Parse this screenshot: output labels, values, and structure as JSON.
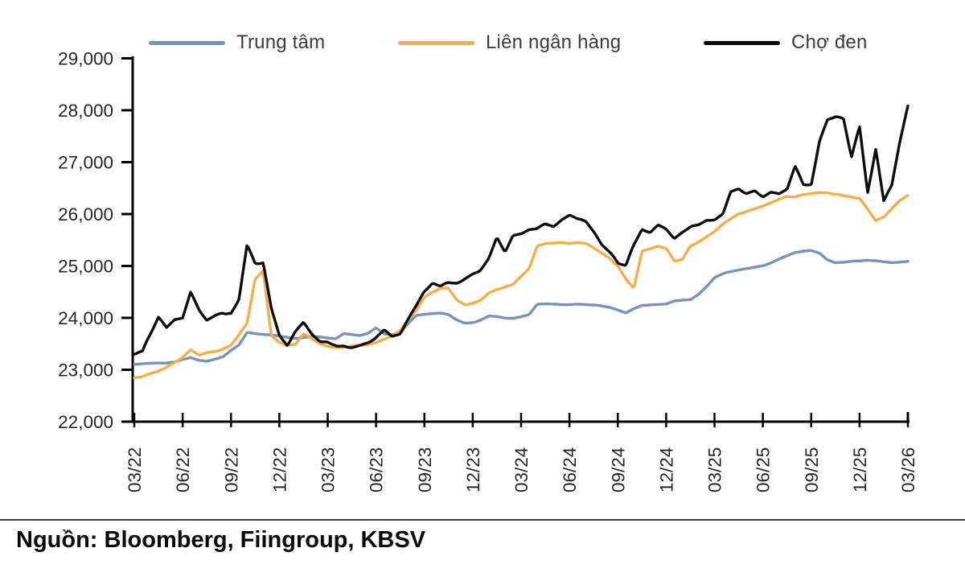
{
  "legend": {
    "items": [
      {
        "label": "Trung tâm",
        "color": "#7b93b6"
      },
      {
        "label": "Liên ngân hàng",
        "color": "#f3af4b"
      },
      {
        "label": "Chợ đen",
        "color": "#0d0d0d"
      }
    ]
  },
  "footer": {
    "source_label": "Nguồn: Bloomberg, Fiingroup, KBSV"
  },
  "chart_data": {
    "type": "line",
    "title": "",
    "xlabel": "",
    "ylabel": "",
    "grid": false,
    "legend_position": "top",
    "ylim": [
      22000,
      29000
    ],
    "y_tick_labels": [
      "22,000",
      "23,000",
      "24,000",
      "25,000",
      "26,000",
      "27,000",
      "28,000",
      "29,000"
    ],
    "x_tick_labels": [
      "03/22",
      "06/22",
      "09/22",
      "12/22",
      "03/23",
      "06/23",
      "09/23",
      "12/23",
      "03/24",
      "06/24",
      "09/24",
      "12/24",
      "03/25",
      "06/25",
      "09/25",
      "12/25",
      "03/26"
    ],
    "x_resolution": "semi-monthly values (2 per month) from 03/2022 to 03/2026, 97 points per series, USD/VND",
    "series": [
      {
        "name": "Trung tâm",
        "color": "#7b93b6",
        "volatility": "low",
        "values": [
          23100,
          23110,
          23120,
          23130,
          23130,
          23150,
          23200,
          23230,
          23180,
          23160,
          23200,
          23250,
          23370,
          23480,
          23720,
          23700,
          23680,
          23670,
          23650,
          23630,
          23610,
          23620,
          23640,
          23630,
          23610,
          23600,
          23700,
          23680,
          23660,
          23700,
          23810,
          23690,
          23680,
          23720,
          23900,
          24050,
          24070,
          24080,
          24090,
          24060,
          23960,
          23900,
          23910,
          23960,
          24040,
          24030,
          24000,
          23990,
          24020,
          24060,
          24260,
          24270,
          24270,
          24260,
          24260,
          24270,
          24260,
          24250,
          24230,
          24200,
          24150,
          24100,
          24180,
          24240,
          24250,
          24260,
          24270,
          24330,
          24340,
          24350,
          24450,
          24600,
          24780,
          24850,
          24890,
          24920,
          24950,
          24980,
          25000,
          25060,
          25130,
          25200,
          25260,
          25290,
          25300,
          25250,
          25120,
          25060,
          25070,
          25090,
          25100,
          25110,
          25100,
          25080,
          25060,
          25070,
          25090
        ]
      },
      {
        "name": "Liên ngân hàng",
        "color": "#f3af4b",
        "volatility": "medium",
        "values": [
          22840,
          22870,
          22920,
          22980,
          23050,
          23150,
          23250,
          23400,
          23280,
          23330,
          23350,
          23400,
          23480,
          23680,
          23900,
          24750,
          24900,
          23650,
          23520,
          23480,
          23500,
          23700,
          23600,
          23500,
          23450,
          23440,
          23430,
          23450,
          23460,
          23480,
          23520,
          23580,
          23650,
          23750,
          23950,
          24150,
          24400,
          24500,
          24570,
          24580,
          24350,
          24260,
          24280,
          24350,
          24480,
          24550,
          24600,
          24650,
          24800,
          24950,
          25380,
          25420,
          25430,
          25450,
          25440,
          25450,
          25430,
          25350,
          25250,
          25150,
          25000,
          24750,
          24570,
          25280,
          25320,
          25380,
          25350,
          25100,
          25120,
          25380,
          25450,
          25550,
          25650,
          25800,
          25900,
          26000,
          26050,
          26100,
          26150,
          26220,
          26280,
          26350,
          26330,
          26380,
          26400,
          26420,
          26400,
          26380,
          26350,
          26320,
          26300,
          26100,
          25880,
          25950,
          26100,
          26250,
          26350
        ]
      },
      {
        "name": "Chợ đen",
        "color": "#0d0d0d",
        "volatility": "high",
        "values": [
          23330,
          23360,
          23700,
          24020,
          23800,
          23950,
          23980,
          24480,
          24150,
          23960,
          24050,
          24080,
          24050,
          24350,
          25430,
          25050,
          25050,
          24150,
          23650,
          23470,
          23750,
          23930,
          23700,
          23550,
          23520,
          23470,
          23450,
          23420,
          23450,
          23500,
          23600,
          23780,
          23640,
          23700,
          23980,
          24250,
          24500,
          24650,
          24600,
          24680,
          24650,
          24750,
          24850,
          24950,
          25150,
          25530,
          25250,
          25560,
          25600,
          25680,
          25700,
          25800,
          25750,
          25900,
          26000,
          25900,
          25850,
          25650,
          25400,
          25250,
          25050,
          25000,
          25400,
          25700,
          25650,
          25800,
          25700,
          25520,
          25650,
          25750,
          25800,
          25900,
          25900,
          26000,
          26450,
          26500,
          26400,
          26450,
          26350,
          26450,
          26400,
          26500,
          26950,
          26600,
          26580,
          27400,
          27800,
          27850,
          27820,
          27100,
          27700,
          26400,
          27250,
          26260,
          26550,
          27400,
          28080
        ]
      }
    ]
  }
}
